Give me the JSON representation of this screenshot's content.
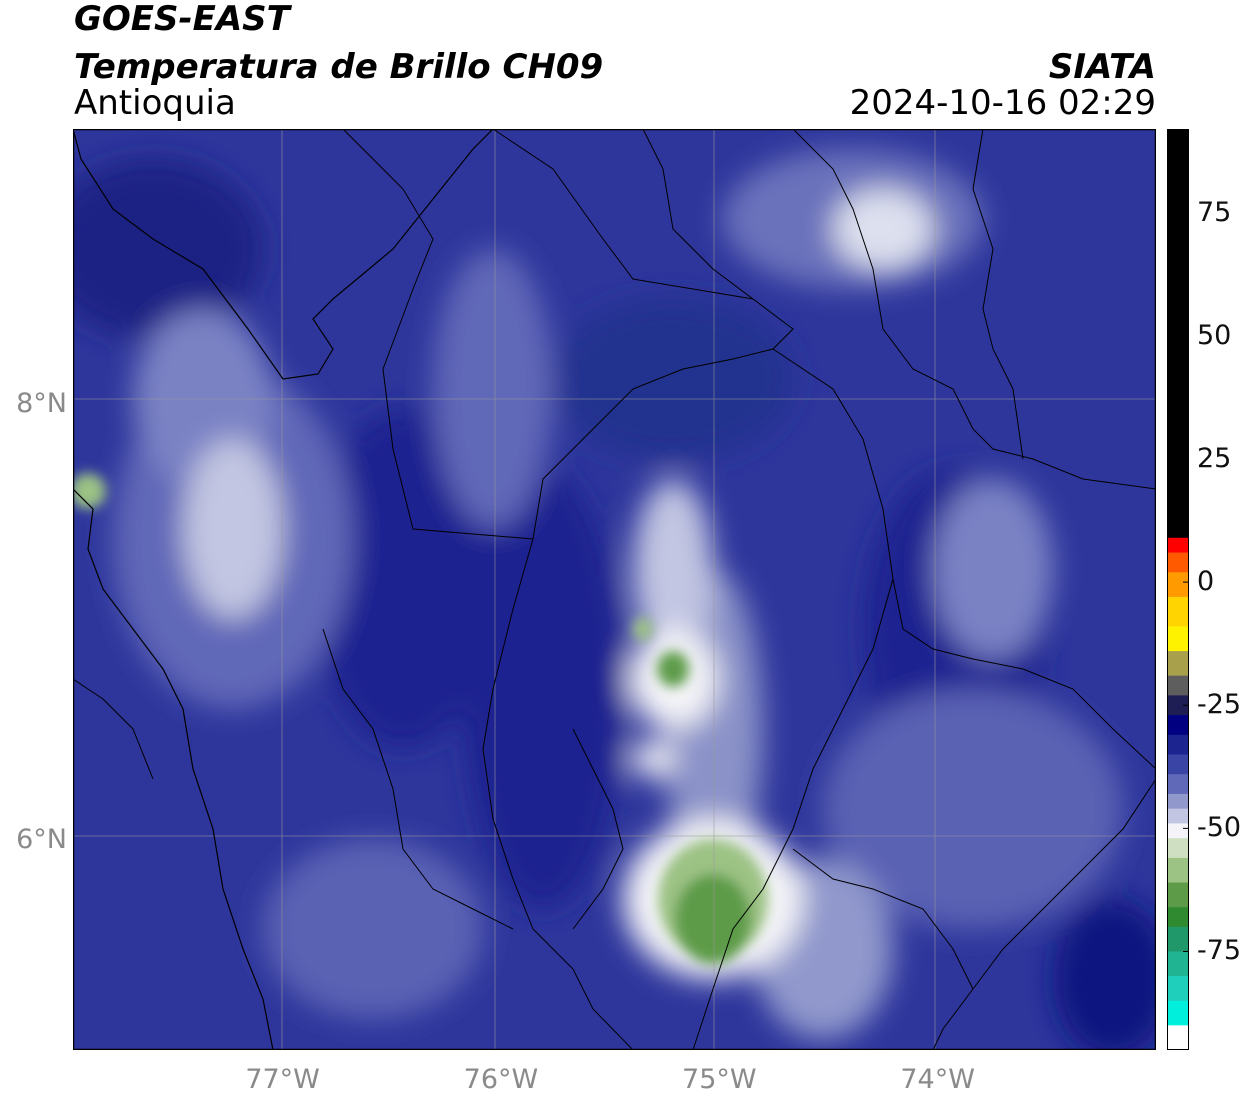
{
  "header": {
    "satellite": "GOES-EAST",
    "product": "Temperatura de Brillo CH09",
    "region": "Antioquia",
    "agency": "SIATA",
    "datetime": "2024-10-16 02:29"
  },
  "map": {
    "lon_range": [
      -77.96,
      -73.0
    ],
    "lat_range": [
      5.04,
      9.26
    ],
    "lon_ticks": [
      -77,
      -76,
      -75,
      -74
    ],
    "lat_ticks": [
      8,
      6
    ],
    "lon_tick_labels": [
      "77°W",
      "76°W",
      "75°W",
      "74°W"
    ],
    "lat_tick_labels": [
      "8°N",
      "6°N"
    ],
    "gridlines": true
  },
  "colorbar": {
    "range": [
      -95,
      92
    ],
    "ticks": [
      75,
      50,
      25,
      0,
      -25,
      -50,
      -75
    ],
    "tick_labels": [
      "75",
      "50",
      "25",
      "0",
      "-25",
      "-50",
      "-75"
    ],
    "segments": [
      {
        "from": 9,
        "to": 92,
        "color": "#000000"
      },
      {
        "from": 6,
        "to": 9,
        "color": "#ff0000"
      },
      {
        "from": 2,
        "to": 6,
        "color": "#ff5a00"
      },
      {
        "from": -3,
        "to": 2,
        "color": "#ff9a00"
      },
      {
        "from": -9,
        "to": -3,
        "color": "#ffd400"
      },
      {
        "from": -14,
        "to": -9,
        "color": "#fff200"
      },
      {
        "from": -19,
        "to": -14,
        "color": "#a8a04a"
      },
      {
        "from": -23,
        "to": -19,
        "color": "#5e5e5e"
      },
      {
        "from": -27,
        "to": -23,
        "color": "#1e1e55"
      },
      {
        "from": -31,
        "to": -27,
        "color": "#000080"
      },
      {
        "from": -35,
        "to": -31,
        "color": "#1c2490"
      },
      {
        "from": -39,
        "to": -35,
        "color": "#3a44a4"
      },
      {
        "from": -43,
        "to": -39,
        "color": "#6068b8"
      },
      {
        "from": -46,
        "to": -43,
        "color": "#9098cc"
      },
      {
        "from": -49,
        "to": -46,
        "color": "#c2c6e2"
      },
      {
        "from": -52,
        "to": -49,
        "color": "#f4f4f8"
      },
      {
        "from": -56,
        "to": -52,
        "color": "#cfe0c2"
      },
      {
        "from": -61,
        "to": -56,
        "color": "#9cc284"
      },
      {
        "from": -66,
        "to": -61,
        "color": "#5d9b48"
      },
      {
        "from": -70,
        "to": -66,
        "color": "#2f8a30"
      },
      {
        "from": -75,
        "to": -70,
        "color": "#20986a"
      },
      {
        "from": -80,
        "to": -75,
        "color": "#20b493"
      },
      {
        "from": -85,
        "to": -80,
        "color": "#20cfbb"
      },
      {
        "from": -90,
        "to": -85,
        "color": "#00eedc"
      },
      {
        "from": -95,
        "to": -90,
        "color": "#ffffff"
      }
    ]
  }
}
